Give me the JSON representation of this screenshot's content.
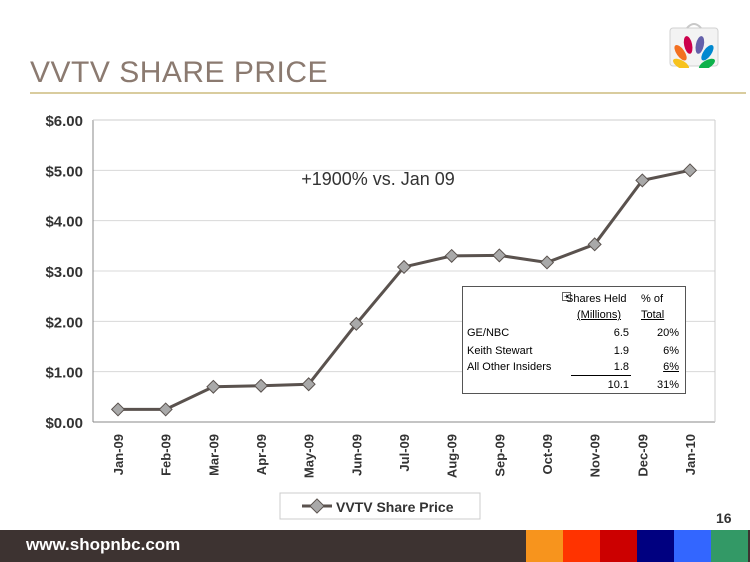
{
  "slide": {
    "title": "VVTV SHARE PRICE",
    "page_number": "16",
    "footer_url": "www.shopnbc.com",
    "footer_colors": [
      "#f7941d",
      "#ff3300",
      "#cc0000",
      "#000080",
      "#3366ff",
      "#339966"
    ]
  },
  "chart_data": {
    "type": "line",
    "categories": [
      "Jan-09",
      "Feb-09",
      "Mar-09",
      "Apr-09",
      "May-09",
      "Jun-09",
      "Jul-09",
      "Aug-09",
      "Sep-09",
      "Oct-09",
      "Nov-09",
      "Dec-09",
      "Jan-10"
    ],
    "series": [
      {
        "name": "VVTV Share Price",
        "values": [
          0.25,
          0.25,
          0.7,
          0.72,
          0.75,
          1.95,
          3.08,
          3.3,
          3.31,
          3.17,
          3.53,
          4.8,
          5.0
        ]
      }
    ],
    "y_ticks": [
      "$0.00",
      "$1.00",
      "$2.00",
      "$3.00",
      "$4.00",
      "$5.00",
      "$6.00"
    ],
    "ylim": [
      0,
      6
    ],
    "annotation": "+1900% vs. Jan 09",
    "legend_position": "bottom",
    "line_color": "#5a524e",
    "marker_color": "#a9a9a9"
  },
  "shares_table": {
    "header_col1_line1": "Shares Held",
    "header_col1_line2": "(Millions)",
    "header_col2_line1": "% of",
    "header_col2_line2": "Total",
    "rows": [
      {
        "name": "GE/NBC",
        "shares": "6.5",
        "pct": "20%"
      },
      {
        "name": "Keith Stewart",
        "shares": "1.9",
        "pct": "6%"
      },
      {
        "name": "All Other Insiders",
        "shares": "1.8",
        "pct": "6%"
      }
    ],
    "total_shares": "10.1",
    "total_pct": "31%"
  }
}
